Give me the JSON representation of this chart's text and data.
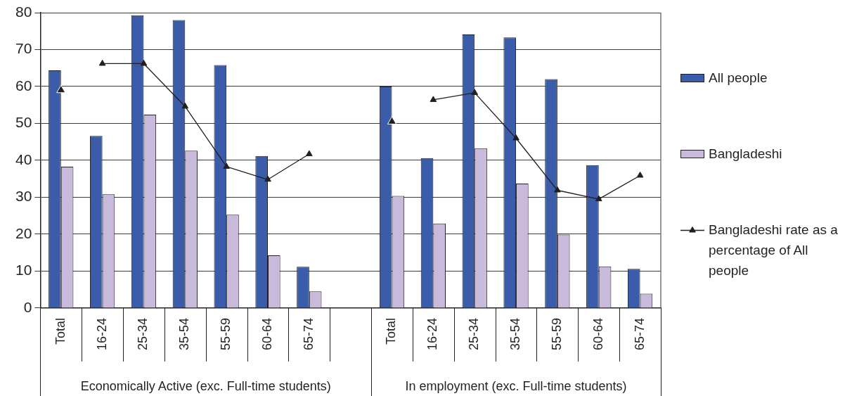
{
  "chart_data": {
    "type": "bar",
    "categories": [
      "Total",
      "16-24",
      "25-34",
      "35-54",
      "55-59",
      "60-64",
      "65-74",
      null,
      "Total",
      "16-24",
      "25-34",
      "35-54",
      "55-59",
      "60-64",
      "65-74"
    ],
    "series": [
      {
        "name": "All people",
        "color": "#3b5ca9",
        "values": [
          64.4,
          46.6,
          79.3,
          78.0,
          65.8,
          41.2,
          11.2,
          null,
          60.0,
          40.6,
          74.1,
          73.3,
          62.0,
          38.7,
          10.6
        ]
      },
      {
        "name": "Bangladeshi",
        "color": "#c9b9da",
        "values": [
          38.3,
          30.8,
          52.4,
          42.6,
          25.3,
          14.3,
          4.5,
          null,
          30.4,
          22.9,
          43.3,
          33.7,
          19.9,
          11.3,
          3.9
        ]
      },
      {
        "name": "Bangladeshi rate as a percentage of All people",
        "type": "line",
        "color": "#231f20",
        "values": [
          null,
          66.2,
          66.2,
          54.6,
          38.3,
          34.8,
          41.7,
          null,
          null,
          56.4,
          58.3,
          46.0,
          31.9,
          29.5,
          35.9
        ]
      },
      {
        "type": "scatter",
        "color": "#231f20",
        "values": [
          59.0,
          null,
          null,
          null,
          null,
          null,
          null,
          null,
          50.5,
          null,
          null,
          null,
          null,
          null,
          null
        ]
      }
    ],
    "ylim": [
      0,
      80
    ],
    "yticks": [
      0,
      10,
      20,
      30,
      40,
      50,
      60,
      70,
      80
    ],
    "grid": "y",
    "legend": "right",
    "marker": "triangle",
    "annotations": [
      "Economically Active (exc. Full-time students)",
      "In employment (exc. Full-time students)"
    ]
  }
}
